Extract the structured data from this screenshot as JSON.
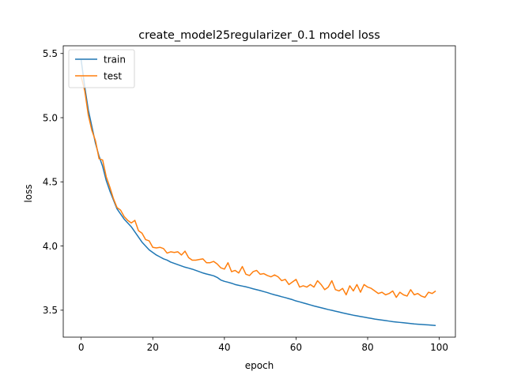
{
  "chart_data": {
    "type": "line",
    "title": "create_model25regularizer_0.1 model loss",
    "xlabel": "epoch",
    "ylabel": "loss",
    "xlim": [
      -5,
      104.5
    ],
    "ylim": [
      3.29,
      5.56
    ],
    "xticks": [
      0,
      20,
      40,
      60,
      80,
      100
    ],
    "yticks": [
      3.5,
      4.0,
      4.5,
      5.0,
      5.5
    ],
    "ytick_labels": [
      "3.5",
      "4.0",
      "4.5",
      "5.0",
      "5.5"
    ],
    "grid": false,
    "legend_position": "upper left",
    "colors": {
      "train": "#1f77b4",
      "test": "#ff7f0e"
    },
    "series": [
      {
        "name": "train",
        "x": [
          0,
          1,
          2,
          3,
          4,
          5,
          6,
          7,
          8,
          9,
          10,
          11,
          12,
          13,
          14,
          15,
          16,
          17,
          18,
          19,
          20,
          21,
          22,
          23,
          24,
          25,
          26,
          27,
          28,
          29,
          30,
          31,
          32,
          33,
          34,
          35,
          36,
          37,
          38,
          39,
          40,
          41,
          42,
          43,
          44,
          45,
          46,
          47,
          48,
          49,
          50,
          51,
          52,
          53,
          54,
          55,
          56,
          57,
          58,
          59,
          60,
          61,
          62,
          63,
          64,
          65,
          66,
          67,
          68,
          69,
          70,
          71,
          72,
          73,
          74,
          75,
          76,
          77,
          78,
          79,
          80,
          81,
          82,
          83,
          84,
          85,
          86,
          87,
          88,
          89,
          90,
          91,
          92,
          93,
          94,
          95,
          96,
          97,
          98,
          99
        ],
        "values": [
          5.45,
          5.24,
          5.06,
          4.93,
          4.8,
          4.7,
          4.62,
          4.51,
          4.43,
          4.36,
          4.29,
          4.25,
          4.21,
          4.18,
          4.15,
          4.11,
          4.07,
          4.03,
          4.0,
          3.97,
          3.95,
          3.93,
          3.915,
          3.9,
          3.89,
          3.875,
          3.865,
          3.855,
          3.845,
          3.835,
          3.828,
          3.82,
          3.81,
          3.8,
          3.79,
          3.782,
          3.775,
          3.768,
          3.755,
          3.735,
          3.725,
          3.718,
          3.71,
          3.7,
          3.694,
          3.688,
          3.682,
          3.675,
          3.667,
          3.66,
          3.653,
          3.645,
          3.637,
          3.628,
          3.62,
          3.613,
          3.605,
          3.598,
          3.59,
          3.582,
          3.572,
          3.565,
          3.557,
          3.549,
          3.541,
          3.533,
          3.526,
          3.519,
          3.512,
          3.505,
          3.499,
          3.492,
          3.486,
          3.479,
          3.473,
          3.467,
          3.461,
          3.456,
          3.451,
          3.446,
          3.441,
          3.436,
          3.431,
          3.427,
          3.423,
          3.419,
          3.415,
          3.411,
          3.408,
          3.405,
          3.402,
          3.399,
          3.396,
          3.393,
          3.391,
          3.389,
          3.387,
          3.385,
          3.383,
          3.381
        ]
      },
      {
        "name": "test",
        "x": [
          0,
          1,
          2,
          3,
          4,
          5,
          6,
          7,
          8,
          9,
          10,
          11,
          12,
          13,
          14,
          15,
          16,
          17,
          18,
          19,
          20,
          21,
          22,
          23,
          24,
          25,
          26,
          27,
          28,
          29,
          30,
          31,
          32,
          33,
          34,
          35,
          36,
          37,
          38,
          39,
          40,
          41,
          42,
          43,
          44,
          45,
          46,
          47,
          48,
          49,
          50,
          51,
          52,
          53,
          54,
          55,
          56,
          57,
          58,
          59,
          60,
          61,
          62,
          63,
          64,
          65,
          66,
          67,
          68,
          69,
          70,
          71,
          72,
          73,
          74,
          75,
          76,
          77,
          78,
          79,
          80,
          81,
          82,
          83,
          84,
          85,
          86,
          87,
          88,
          89,
          90,
          91,
          92,
          93,
          94,
          95,
          96,
          97,
          98,
          99
        ],
        "values": [
          5.32,
          5.21,
          5.02,
          4.9,
          4.82,
          4.68,
          4.67,
          4.54,
          4.46,
          4.37,
          4.3,
          4.28,
          4.23,
          4.2,
          4.18,
          4.2,
          4.12,
          4.1,
          4.05,
          4.04,
          3.99,
          3.985,
          3.99,
          3.98,
          3.945,
          3.955,
          3.95,
          3.955,
          3.93,
          3.96,
          3.91,
          3.89,
          3.89,
          3.895,
          3.9,
          3.87,
          3.87,
          3.88,
          3.86,
          3.83,
          3.82,
          3.87,
          3.8,
          3.81,
          3.79,
          3.84,
          3.78,
          3.77,
          3.8,
          3.81,
          3.78,
          3.785,
          3.77,
          3.76,
          3.775,
          3.76,
          3.73,
          3.74,
          3.7,
          3.72,
          3.74,
          3.68,
          3.69,
          3.68,
          3.7,
          3.68,
          3.73,
          3.7,
          3.66,
          3.68,
          3.73,
          3.66,
          3.65,
          3.67,
          3.62,
          3.69,
          3.65,
          3.7,
          3.64,
          3.7,
          3.68,
          3.67,
          3.65,
          3.63,
          3.64,
          3.62,
          3.63,
          3.65,
          3.6,
          3.64,
          3.62,
          3.61,
          3.66,
          3.62,
          3.63,
          3.61,
          3.6,
          3.64,
          3.63,
          3.65
        ]
      }
    ]
  }
}
